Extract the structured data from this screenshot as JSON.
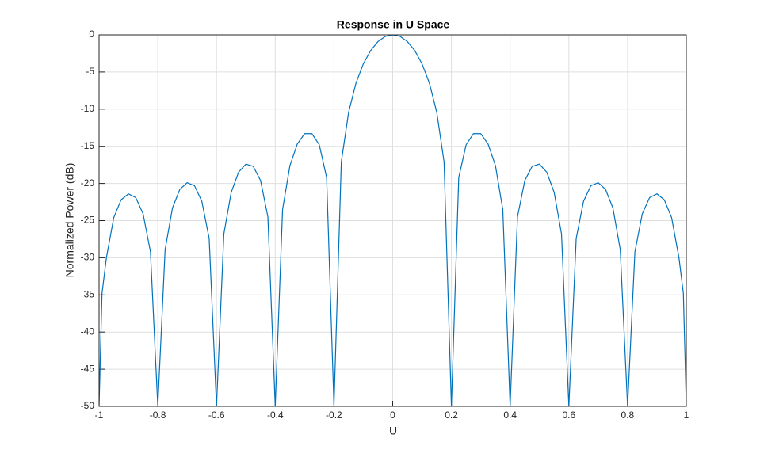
{
  "chart_data": {
    "type": "line",
    "title": "Response in U Space",
    "xlabel": "U",
    "ylabel": "Normalized Power (dB)",
    "x": [
      -1,
      -0.99,
      -0.975,
      -0.95,
      -0.925,
      -0.9,
      -0.875,
      -0.85,
      -0.825,
      -0.8,
      -0.775,
      -0.75,
      -0.725,
      -0.7,
      -0.675,
      -0.65,
      -0.625,
      -0.6,
      -0.575,
      -0.55,
      -0.525,
      -0.5,
      -0.475,
      -0.45,
      -0.425,
      -0.4,
      -0.375,
      -0.35,
      -0.325,
      -0.3,
      -0.275,
      -0.25,
      -0.225,
      -0.2,
      -0.175,
      -0.15,
      -0.125,
      -0.1,
      -0.075,
      -0.05,
      -0.025,
      0,
      0.025,
      0.05,
      0.075,
      0.1,
      0.125,
      0.15,
      0.175,
      0.2,
      0.225,
      0.25,
      0.275,
      0.3,
      0.325,
      0.35,
      0.375,
      0.4,
      0.425,
      0.45,
      0.475,
      0.5,
      0.525,
      0.55,
      0.575,
      0.6,
      0.625,
      0.65,
      0.675,
      0.7,
      0.725,
      0.75,
      0.775,
      0.8,
      0.825,
      0.85,
      0.875,
      0.9,
      0.925,
      0.95,
      0.975,
      0.99,
      1
    ],
    "values": [
      -50,
      -34.8,
      -30.0,
      -24.6,
      -22.2,
      -21.4,
      -21.9,
      -24.1,
      -29.2,
      -50,
      -28.9,
      -23.3,
      -20.8,
      -19.9,
      -20.3,
      -22.4,
      -27.4,
      -50,
      -26.8,
      -21.2,
      -18.5,
      -17.4,
      -17.7,
      -19.6,
      -24.5,
      -50,
      -23.5,
      -17.6,
      -14.7,
      -13.3,
      -13.3,
      -14.8,
      -19.2,
      -50,
      -17.1,
      -10.4,
      -6.5,
      -3.9,
      -2.1,
      -0.9,
      -0.2,
      0,
      -0.2,
      -0.9,
      -2.1,
      -3.9,
      -6.5,
      -10.4,
      -17.1,
      -50,
      -19.2,
      -14.8,
      -13.3,
      -13.3,
      -14.7,
      -17.6,
      -23.5,
      -50,
      -24.5,
      -19.6,
      -17.7,
      -17.4,
      -18.5,
      -21.2,
      -26.8,
      -50,
      -27.4,
      -22.4,
      -20.3,
      -19.9,
      -20.8,
      -23.3,
      -28.9,
      -50,
      -29.2,
      -24.1,
      -21.9,
      -21.4,
      -22.2,
      -24.6,
      -30.0,
      -34.8,
      -50
    ],
    "color": "#0072bd",
    "xlim": [
      -1,
      1
    ],
    "xticks": [
      -1,
      -0.8,
      -0.6,
      -0.4,
      -0.2,
      0,
      0.2,
      0.4,
      0.6,
      0.8,
      1
    ],
    "ylim": [
      -50,
      0
    ],
    "yticks": [
      -50,
      -45,
      -40,
      -35,
      -30,
      -25,
      -20,
      -15,
      -10,
      -5,
      0
    ],
    "grid": true
  }
}
